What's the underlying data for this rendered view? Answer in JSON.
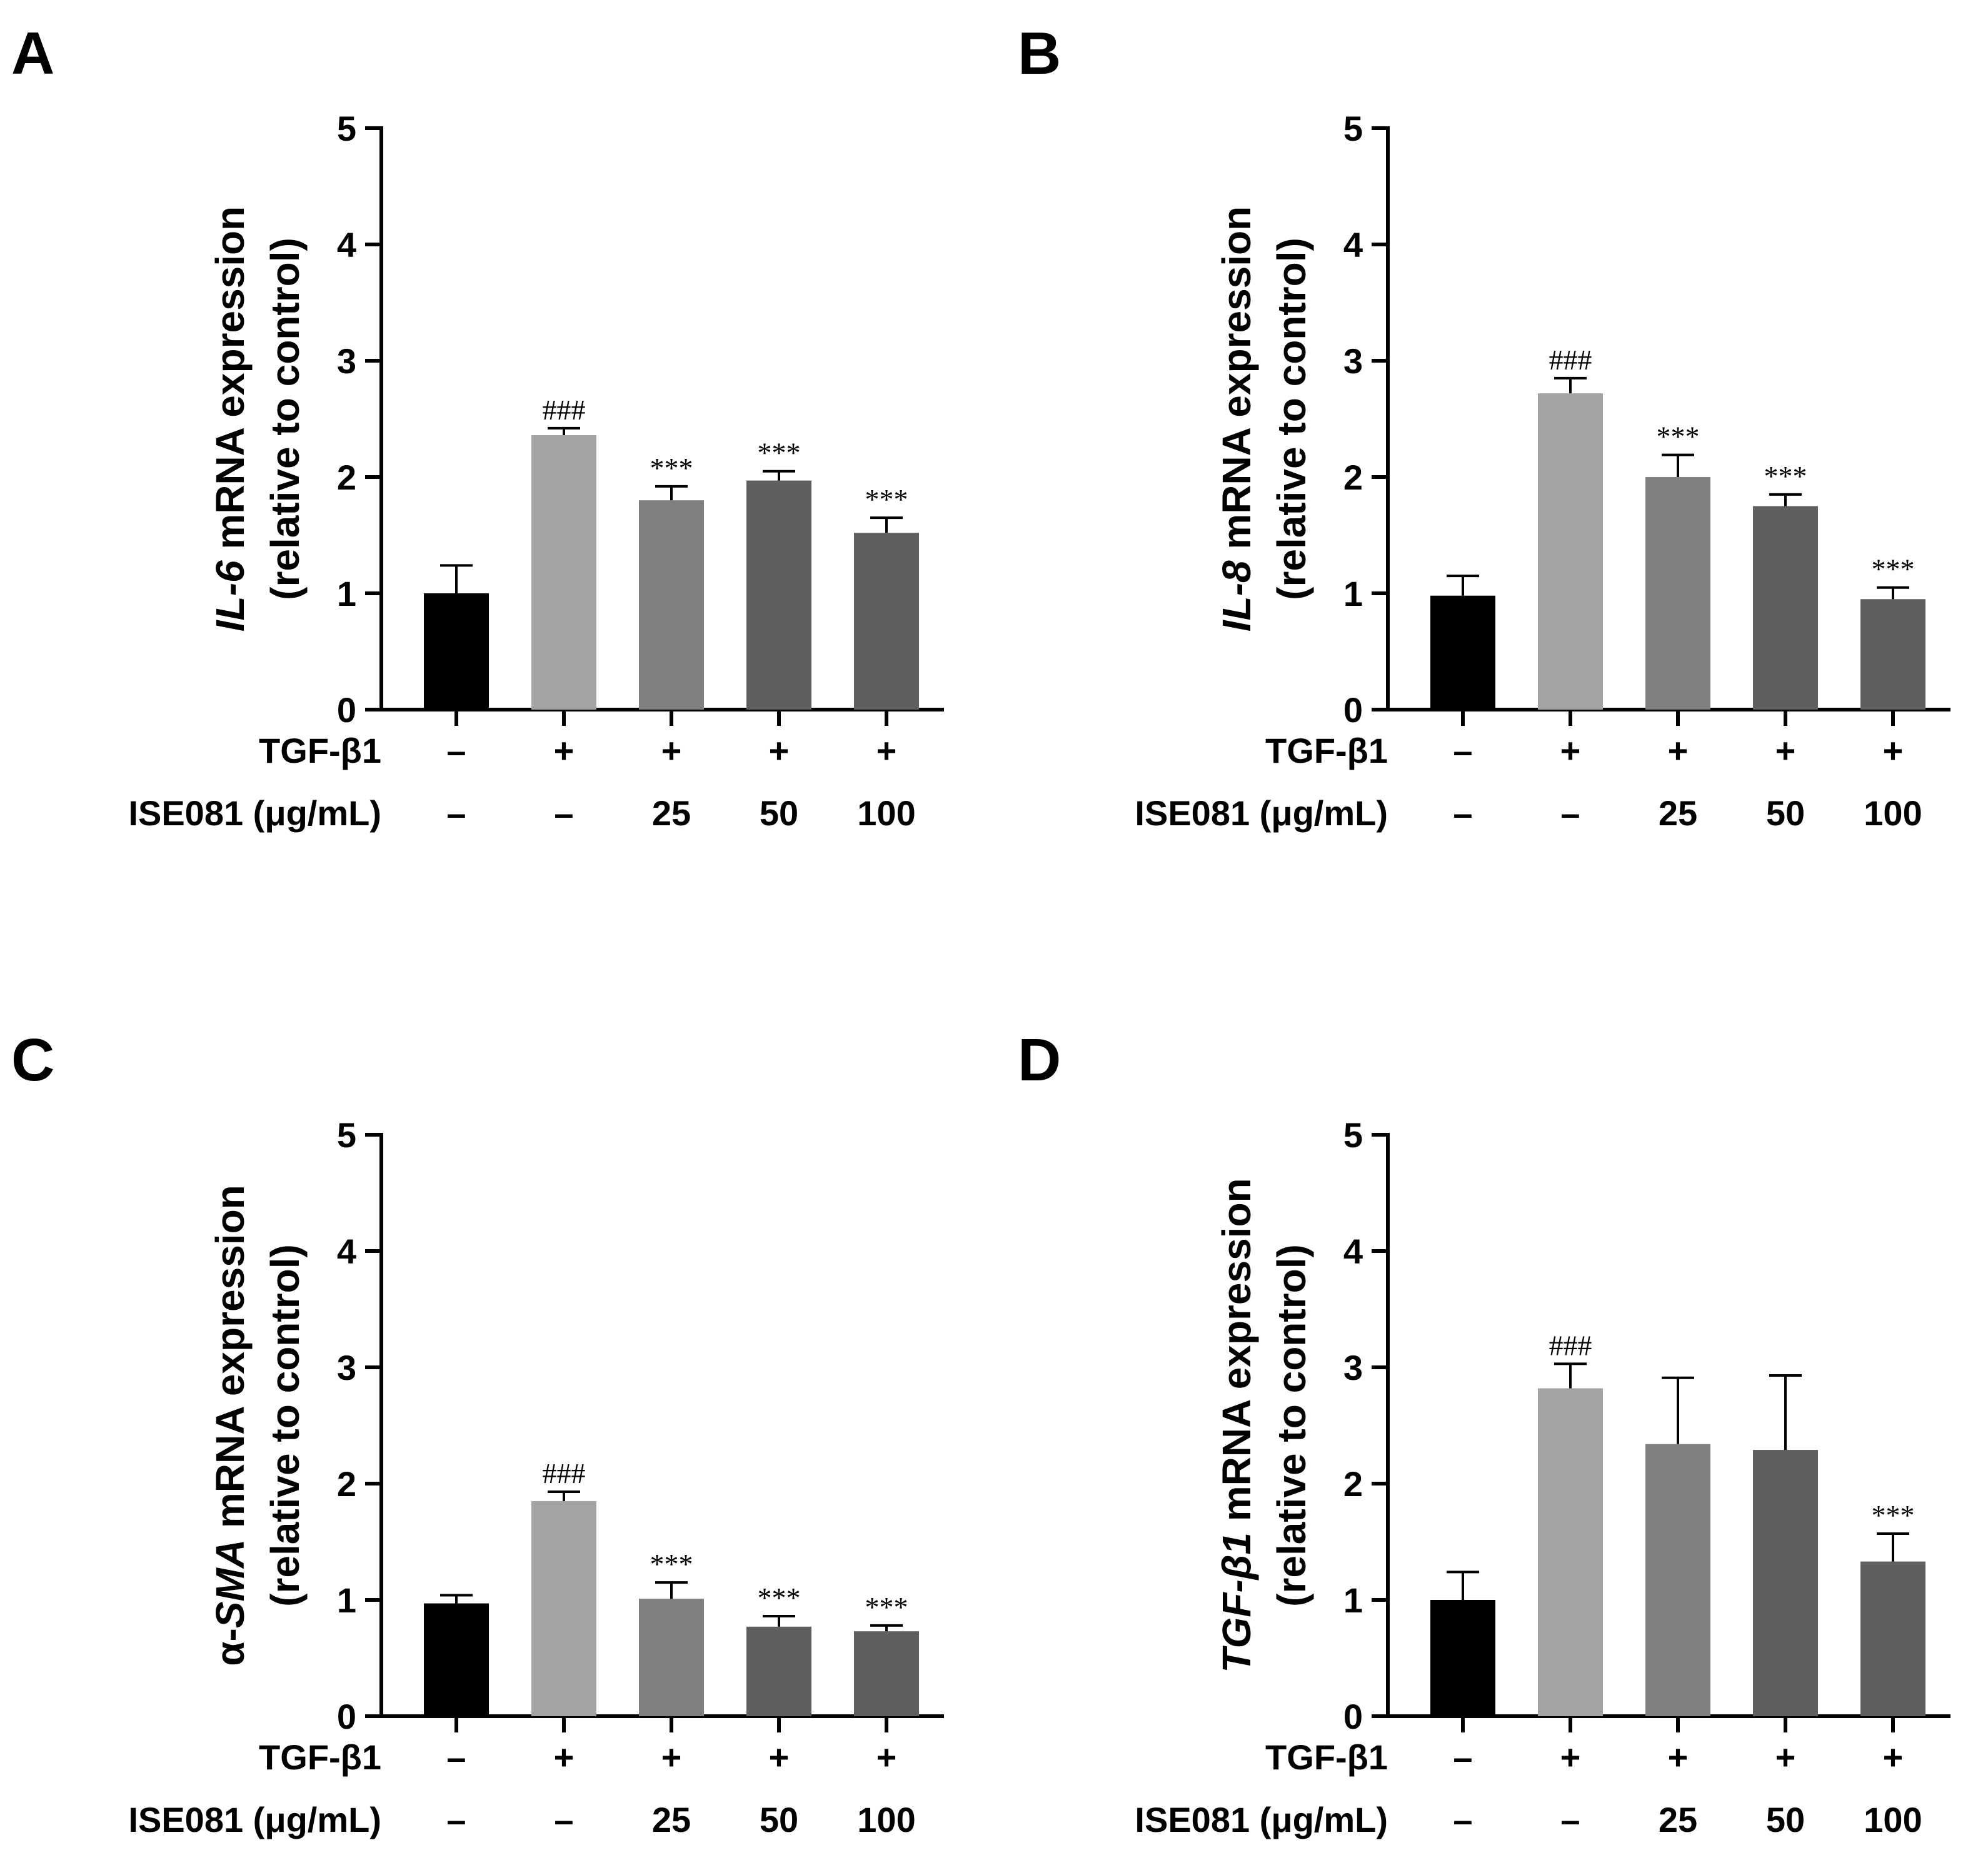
{
  "chart_data": [
    {
      "panel": "A",
      "type": "bar",
      "ylabel": [
        "IL-6",
        " mRNA expression",
        "(relative to control)"
      ],
      "ylabel_italic_part": "IL-6",
      "ylim": [
        0,
        5
      ],
      "yticks": [
        "0",
        "1",
        "2",
        "3",
        "4",
        "5"
      ],
      "rows": [
        {
          "label": "TGF-β1",
          "values": [
            "–",
            "+",
            "+",
            "+",
            "+"
          ]
        },
        {
          "label": "ISE081 (μg/mL)",
          "values": [
            "–",
            "–",
            "25",
            "50",
            "100"
          ]
        }
      ],
      "values": [
        1.0,
        2.36,
        1.8,
        1.97,
        1.52
      ],
      "errors": [
        0.24,
        0.06,
        0.12,
        0.08,
        0.13
      ],
      "annotations": [
        "",
        "###",
        "***",
        "***",
        "***"
      ],
      "colors": [
        "#000000",
        "#a3a3a5",
        "#7f7f7f",
        "#5f5f5f",
        "#5f5f5f"
      ]
    },
    {
      "panel": "B",
      "type": "bar",
      "ylabel": [
        "IL-8",
        " mRNA expression",
        "(relative to control)"
      ],
      "ylim": [
        0,
        5
      ],
      "yticks": [
        "0",
        "1",
        "2",
        "3",
        "4",
        "5"
      ],
      "rows": [
        {
          "label": "TGF-β1",
          "values": [
            "–",
            "+",
            "+",
            "+",
            "+"
          ]
        },
        {
          "label": "ISE081 (μg/mL)",
          "values": [
            "–",
            "–",
            "25",
            "50",
            "100"
          ]
        }
      ],
      "values": [
        0.98,
        2.72,
        2.0,
        1.75,
        0.95
      ],
      "errors": [
        0.17,
        0.13,
        0.19,
        0.1,
        0.1
      ],
      "annotations": [
        "",
        "###",
        "***",
        "***",
        "***"
      ],
      "colors": [
        "#000000",
        "#a3a3a5",
        "#7f7f7f",
        "#5f5f5f",
        "#5f5f5f"
      ]
    },
    {
      "panel": "C",
      "type": "bar",
      "ylabel": [
        "α-",
        "SMA",
        " mRNA expression",
        "(relative to control)"
      ],
      "ylim": [
        0,
        5
      ],
      "yticks": [
        "0",
        "1",
        "2",
        "3",
        "4",
        "5"
      ],
      "rows": [
        {
          "label": "TGF-β1",
          "values": [
            "–",
            "+",
            "+",
            "+",
            "+"
          ]
        },
        {
          "label": "ISE081 (μg/mL)",
          "values": [
            "–",
            "–",
            "25",
            "50",
            "100"
          ]
        }
      ],
      "values": [
        0.97,
        1.85,
        1.01,
        0.77,
        0.73
      ],
      "errors": [
        0.07,
        0.08,
        0.14,
        0.09,
        0.05
      ],
      "annotations": [
        "",
        "###",
        "***",
        "***",
        "***"
      ],
      "colors": [
        "#000000",
        "#a3a3a5",
        "#7f7f7f",
        "#5f5f5f",
        "#5f5f5f"
      ]
    },
    {
      "panel": "D",
      "type": "bar",
      "ylabel": [
        "TGF-β1",
        " mRNA expression",
        "(relative to control)"
      ],
      "ylim": [
        0,
        5
      ],
      "yticks": [
        "0",
        "1",
        "2",
        "3",
        "4",
        "5"
      ],
      "rows": [
        {
          "label": "TGF-β1",
          "values": [
            "–",
            "+",
            "+",
            "+",
            "+"
          ]
        },
        {
          "label": "ISE081 (μg/mL)",
          "values": [
            "–",
            "–",
            "25",
            "50",
            "100"
          ]
        }
      ],
      "values": [
        1.0,
        2.82,
        2.34,
        2.29,
        1.33
      ],
      "errors": [
        0.24,
        0.21,
        0.57,
        0.64,
        0.24
      ],
      "annotations": [
        "",
        "###",
        "",
        "",
        "***"
      ],
      "colors": [
        "#000000",
        "#a3a3a5",
        "#7f7f7f",
        "#5f5f5f",
        "#5f5f5f"
      ]
    }
  ]
}
